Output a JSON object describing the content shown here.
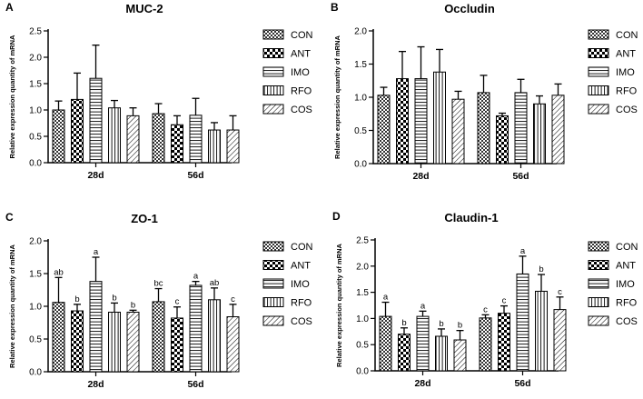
{
  "legend_labels": [
    "CON",
    "ANT",
    "IMO",
    "RFO",
    "COS"
  ],
  "chart_data": [
    {
      "panel": "A",
      "type": "bar",
      "title": "MUC-2",
      "ylabel": "Relative expression quantity of mRNA",
      "ylim": [
        0,
        2.5
      ],
      "yticks": [
        "0.0",
        "0.5",
        "1.0",
        "1.5",
        "2.0",
        "2.5"
      ],
      "categories": [
        "28d",
        "56d"
      ],
      "series": [
        {
          "name": "CON",
          "values": [
            1.0,
            0.93
          ],
          "errors": [
            0.17,
            0.19
          ],
          "letters": [
            "",
            ""
          ]
        },
        {
          "name": "ANT",
          "values": [
            1.2,
            0.72
          ],
          "errors": [
            0.5,
            0.17
          ],
          "letters": [
            "",
            ""
          ]
        },
        {
          "name": "IMO",
          "values": [
            1.6,
            0.9
          ],
          "errors": [
            0.63,
            0.32
          ],
          "letters": [
            "",
            ""
          ]
        },
        {
          "name": "RFO",
          "values": [
            1.04,
            0.62
          ],
          "errors": [
            0.14,
            0.14
          ],
          "letters": [
            "",
            ""
          ]
        },
        {
          "name": "COS",
          "values": [
            0.89,
            0.62
          ],
          "errors": [
            0.15,
            0.27
          ],
          "letters": [
            "",
            ""
          ]
        }
      ]
    },
    {
      "panel": "B",
      "type": "bar",
      "title": "Occludin",
      "ylabel": "Relative expression quantity of mRNA",
      "ylim": [
        0,
        2.0
      ],
      "yticks": [
        "0.0",
        "0.5",
        "1.0",
        "1.5",
        "2.0"
      ],
      "categories": [
        "28d",
        "56d"
      ],
      "series": [
        {
          "name": "CON",
          "values": [
            1.03,
            1.07
          ],
          "errors": [
            0.12,
            0.26
          ],
          "letters": [
            "",
            ""
          ]
        },
        {
          "name": "ANT",
          "values": [
            1.28,
            0.72
          ],
          "errors": [
            0.41,
            0.04
          ],
          "letters": [
            "",
            ""
          ]
        },
        {
          "name": "IMO",
          "values": [
            1.28,
            1.07
          ],
          "errors": [
            0.48,
            0.2
          ],
          "letters": [
            "",
            ""
          ]
        },
        {
          "name": "RFO",
          "values": [
            1.38,
            0.9
          ],
          "errors": [
            0.34,
            0.12
          ],
          "letters": [
            "",
            ""
          ]
        },
        {
          "name": "COS",
          "values": [
            0.97,
            1.03
          ],
          "errors": [
            0.12,
            0.17
          ],
          "letters": [
            "",
            ""
          ]
        }
      ]
    },
    {
      "panel": "C",
      "type": "bar",
      "title": "ZO-1",
      "ylabel": "Relative expression quantity of mRNA",
      "ylim": [
        0,
        2.0
      ],
      "yticks": [
        "0.0",
        "0.5",
        "1.0",
        "1.5",
        "2.0"
      ],
      "categories": [
        "28d",
        "56d"
      ],
      "series": [
        {
          "name": "CON",
          "values": [
            1.06,
            1.07
          ],
          "errors": [
            0.38,
            0.2
          ],
          "letters": [
            "ab",
            "bc"
          ]
        },
        {
          "name": "ANT",
          "values": [
            0.93,
            0.82
          ],
          "errors": [
            0.1,
            0.17
          ],
          "letters": [
            "b",
            "c"
          ]
        },
        {
          "name": "IMO",
          "values": [
            1.38,
            1.32
          ],
          "errors": [
            0.37,
            0.06
          ],
          "letters": [
            "a",
            "a"
          ]
        },
        {
          "name": "RFO",
          "values": [
            0.91,
            1.1
          ],
          "errors": [
            0.14,
            0.18
          ],
          "letters": [
            "b",
            "ab"
          ]
        },
        {
          "name": "COS",
          "values": [
            0.91,
            0.84
          ],
          "errors": [
            0.03,
            0.19
          ],
          "letters": [
            "b",
            "c"
          ]
        }
      ]
    },
    {
      "panel": "D",
      "type": "bar",
      "title": "Claudin-1",
      "ylabel": "Relative expression quantity of mRNA",
      "ylim": [
        0,
        2.5
      ],
      "yticks": [
        "0.0",
        "0.5",
        "1.0",
        "1.5",
        "2.0",
        "2.5"
      ],
      "categories": [
        "28d",
        "56d"
      ],
      "series": [
        {
          "name": "CON",
          "values": [
            1.04,
            1.01
          ],
          "errors": [
            0.27,
            0.06
          ],
          "letters": [
            "a",
            "c"
          ]
        },
        {
          "name": "ANT",
          "values": [
            0.7,
            1.1
          ],
          "errors": [
            0.12,
            0.14
          ],
          "letters": [
            "b",
            "c"
          ]
        },
        {
          "name": "IMO",
          "values": [
            1.04,
            1.85
          ],
          "errors": [
            0.1,
            0.34
          ],
          "letters": [
            "a",
            "a"
          ]
        },
        {
          "name": "RFO",
          "values": [
            0.66,
            1.52
          ],
          "errors": [
            0.14,
            0.32
          ],
          "letters": [
            "b",
            "b"
          ]
        },
        {
          "name": "COS",
          "values": [
            0.59,
            1.17
          ],
          "errors": [
            0.18,
            0.24
          ],
          "letters": [
            "b",
            "c"
          ]
        }
      ]
    }
  ]
}
